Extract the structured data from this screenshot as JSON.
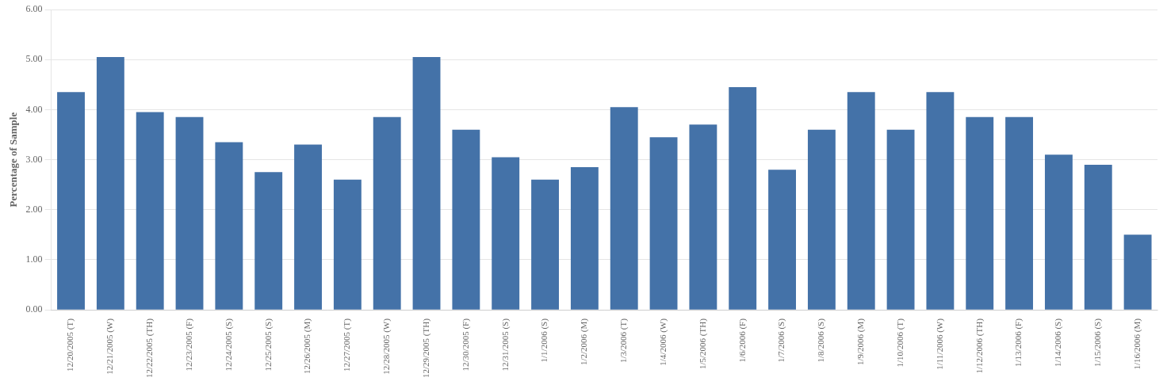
{
  "chart_data": {
    "type": "bar",
    "categories": [
      "12/20/2005 (T)",
      "12/21/2005 (W)",
      "12/22/2005 (TH)",
      "12/23/2005 (F)",
      "12/24/2005 (S)",
      "12/25/2005 (S)",
      "12/26/2005 (M)",
      "12/27/2005 (T)",
      "12/28/2005 (W)",
      "12/29/2005 (TH)",
      "12/30/2005 (F)",
      "12/31/2005 (S)",
      "1/1/2006 (S)",
      "1/2/2006 (M)",
      "1/3/2006 (T)",
      "1/4/2006 (W)",
      "1/5/2006 (TH)",
      "1/6/2006 (F)",
      "1/7/2006 (S)",
      "1/8/2006 (S)",
      "1/9/2006 (M)",
      "1/10/2006 (T)",
      "1/11/2006 (W)",
      "1/12/2006 (TH)",
      "1/13/2006 (F)",
      "1/14/2006 (S)",
      "1/15/2006 (S)",
      "1/16/2006 (M)"
    ],
    "values": [
      4.35,
      5.05,
      3.95,
      3.85,
      3.35,
      2.75,
      3.3,
      2.6,
      3.85,
      5.05,
      3.6,
      3.05,
      2.6,
      2.85,
      4.05,
      3.45,
      3.7,
      4.45,
      2.8,
      3.6,
      4.35,
      3.6,
      4.35,
      3.85,
      3.85,
      3.1,
      2.9,
      1.5
    ],
    "color": "#4472a8",
    "ylabel": "Percentage of Sample",
    "ylim": [
      0,
      6.0
    ],
    "yticks": [
      {
        "value": 0.0,
        "label": "0.00"
      },
      {
        "value": 1.0,
        "label": "1.00"
      },
      {
        "value": 2.0,
        "label": "2.00"
      },
      {
        "value": 3.0,
        "label": "3.00"
      },
      {
        "value": 4.0,
        "label": "4.00"
      },
      {
        "value": 5.0,
        "label": "5.00"
      },
      {
        "value": 6.0,
        "label": "6.00"
      }
    ],
    "grid": true
  }
}
